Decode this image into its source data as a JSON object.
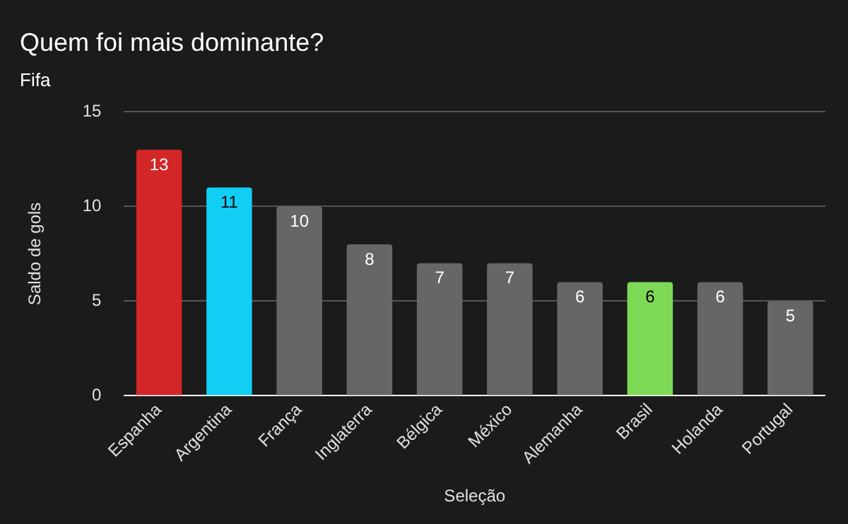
{
  "chart_data": {
    "type": "bar",
    "title": "Quem foi mais dominante?",
    "subtitle": "Fifa",
    "xlabel": "Seleção",
    "ylabel": "Saldo de gols",
    "categories": [
      "Espanha",
      "Argentina",
      "França",
      "Inglaterra",
      "Bélgica",
      "México",
      "Alemanha",
      "Brasil",
      "Holanda",
      "Portugal"
    ],
    "values": [
      13,
      11,
      10,
      8,
      7,
      7,
      6,
      6,
      6,
      5
    ],
    "colors": [
      "#d32626",
      "#12cdf4",
      "#666666",
      "#666666",
      "#666666",
      "#666666",
      "#666666",
      "#7ed957",
      "#666666",
      "#666666"
    ],
    "ylim": [
      0,
      15
    ],
    "yticks": [
      0,
      5,
      10,
      15
    ],
    "grid": "y",
    "data_labels": true,
    "legend": false
  }
}
